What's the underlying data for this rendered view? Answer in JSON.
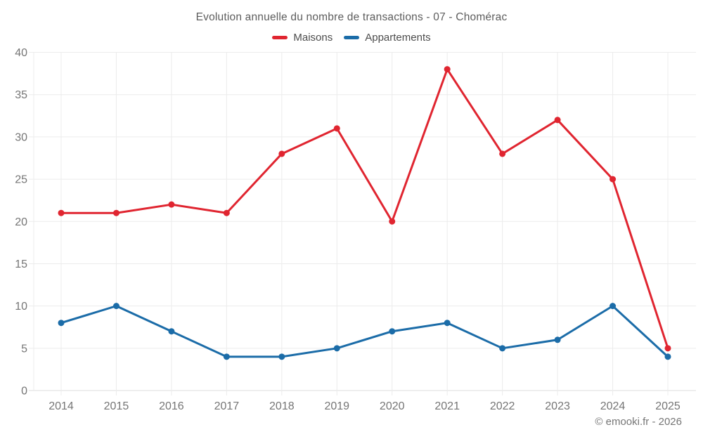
{
  "header": {
    "title": "Evolution annuelle du nombre de transactions - 07 - Chomérac"
  },
  "legend": {
    "items": [
      {
        "label": "Maisons",
        "color": "#e02530"
      },
      {
        "label": "Appartements",
        "color": "#1b6ca8"
      }
    ]
  },
  "footer": {
    "credit": "© emooki.fr - 2026"
  },
  "chart_data": {
    "type": "line",
    "title": "Evolution annuelle du nombre de transactions - 07 - Chomérac",
    "categories": [
      "2014",
      "2015",
      "2016",
      "2017",
      "2018",
      "2019",
      "2020",
      "2021",
      "2022",
      "2023",
      "2024",
      "2025"
    ],
    "series": [
      {
        "name": "Maisons",
        "color": "#e02530",
        "values": [
          21,
          21,
          22,
          21,
          28,
          31,
          20,
          38,
          28,
          32,
          25,
          5
        ]
      },
      {
        "name": "Appartements",
        "color": "#1b6ca8",
        "values": [
          8,
          10,
          7,
          4,
          4,
          5,
          7,
          8,
          5,
          6,
          10,
          4
        ]
      }
    ],
    "xlabel": "",
    "ylabel": "",
    "ylim": [
      0,
      40
    ],
    "y_ticks": [
      0,
      5,
      10,
      15,
      20,
      25,
      30,
      35,
      40
    ],
    "grid": true,
    "legend_position": "top"
  }
}
